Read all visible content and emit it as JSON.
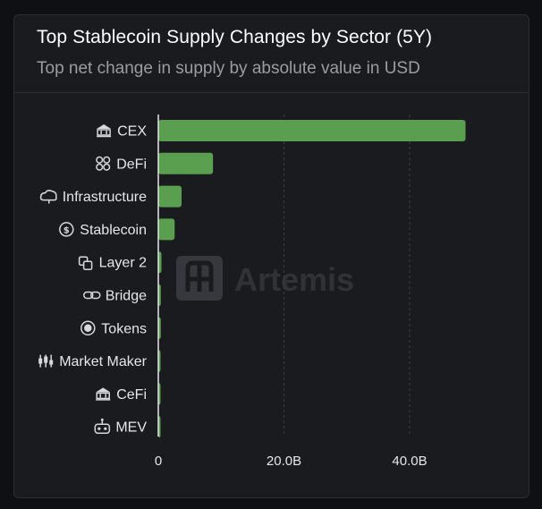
{
  "header": {
    "title": "Top Stablecoin Supply Changes by Sector (5Y)",
    "subtitle": "Top net change in supply by absolute value in USD"
  },
  "watermark": {
    "text": "Artemis"
  },
  "colors": {
    "bar": "#5a9e4f",
    "background": "#1a1b1f",
    "grid": "#3a3c42"
  },
  "chart_data": {
    "type": "bar",
    "orientation": "horizontal",
    "categories": [
      "CEX",
      "DeFi",
      "Infrastructure",
      "Stablecoin",
      "Layer 2",
      "Bridge",
      "Tokens",
      "Market Maker",
      "CeFi",
      "MEV"
    ],
    "category_icons": [
      "bank-icon",
      "defi-grid-icon",
      "cloud-icon",
      "coin-icon",
      "layers-icon",
      "link-icon",
      "token-icon",
      "market-maker-icon",
      "bank-icon",
      "robot-icon"
    ],
    "values": [
      48.9,
      8.7,
      3.7,
      2.6,
      0.5,
      0.4,
      0.4,
      0.35,
      0.3,
      0.3
    ],
    "xlim": [
      0,
      50
    ],
    "xticks": [
      0,
      20,
      40
    ],
    "xtick_labels": [
      "0",
      "20.0B",
      "40.0B"
    ],
    "grid": "vertical dashed",
    "legend": "none"
  }
}
